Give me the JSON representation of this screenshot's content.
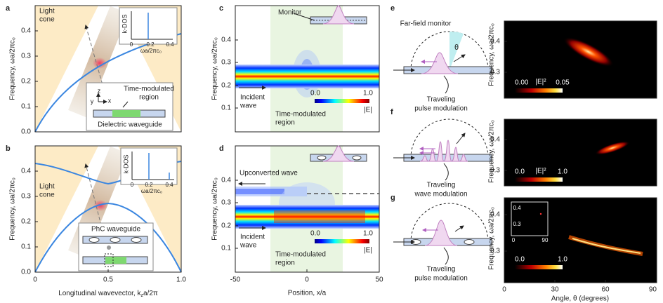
{
  "a": {
    "label": "a",
    "light_cone": [
      "Light",
      "cone"
    ],
    "kdos": "k-DOS",
    "inset_ticks": [
      "0",
      "0.2",
      "0.4"
    ],
    "inset_xlabel": "ωa/2πc₀",
    "ylabel": "Frequency, ωa/2πc₀",
    "yticks": [
      "0.0",
      "0.1",
      "0.2",
      "0.3",
      "0.4"
    ],
    "axes": [
      "y",
      "z",
      "x"
    ],
    "region": [
      "Time-modulated",
      "region"
    ],
    "waveguide": "Dielectric waveguide"
  },
  "b": {
    "label": "b",
    "light_cone": [
      "Light",
      "cone"
    ],
    "kdos": "k-DOS",
    "inset_ticks": [
      "0",
      "0.2",
      "0.4"
    ],
    "inset_xlabel": "ωa/2πc₀",
    "ylabel": "Frequency, ωa/2πc₀",
    "yticks": [
      "0.0",
      "0.1",
      "0.2",
      "0.3",
      "0.4"
    ],
    "waveguide": "PhC waveguide",
    "xticks": [
      "0",
      "0.5",
      "1.0"
    ],
    "xlabel": [
      "Longitudinal wavevector, k",
      "z",
      "a/2π"
    ]
  },
  "c": {
    "label": "c",
    "monitor": "Monitor",
    "incident": [
      "Incident",
      "wave"
    ],
    "region": [
      "Time-modulated",
      "region"
    ],
    "colorbar": [
      "0.0",
      "1.0"
    ],
    "colorbar_label": "|E|",
    "ylabel": "Frequency, ωa/2πc₀",
    "yticks": [
      "0.1",
      "0.2",
      "0.3",
      "0.4"
    ]
  },
  "d": {
    "label": "d",
    "upconverted": "Upconverted wave",
    "incident": [
      "Incident",
      "wave"
    ],
    "region": [
      "Time-modulated",
      "region"
    ],
    "colorbar": [
      "0.0",
      "1.0"
    ],
    "colorbar_label": "|E|",
    "ylabel": "Frequency, ωa/2πc₀",
    "yticks": [
      "0.1",
      "0.2",
      "0.3",
      "0.4"
    ],
    "xticks": [
      "-50",
      "0",
      "50"
    ],
    "xlabel": "Position, x/a"
  },
  "e": {
    "label": "e",
    "monitor": "Far-field monitor",
    "theta": "θ",
    "caption": [
      "Traveling",
      "pulse modulation"
    ],
    "ylabel": "Frequency, ωa/2πc₀",
    "yticks": [
      "0.3",
      "0.4"
    ],
    "colorbar": [
      "0.00",
      "0.05"
    ],
    "colorbar_label": "|E|²"
  },
  "f": {
    "label": "f",
    "caption": [
      "Traveling",
      "wave modulation"
    ],
    "ylabel": "Frequency, ωa/2πc₀",
    "yticks": [
      "0.3",
      "0.4"
    ],
    "colorbar": [
      "0.0",
      "1.0"
    ],
    "colorbar_label": "|E|²"
  },
  "g": {
    "label": "g",
    "caption": [
      "Traveling",
      "pulse modulation"
    ],
    "ylabel": "Frequency, ωa/2πc₀",
    "yticks": [
      "0.3",
      "0.4"
    ],
    "colorbar": [
      "0.0",
      "1.0"
    ],
    "inset_yticks": [
      "0.4",
      "0.3"
    ],
    "inset_xticks": [
      "0",
      "90"
    ],
    "xticks": [
      "0",
      "30",
      "60",
      "90"
    ],
    "xlabel": "Angle, θ (degrees)"
  }
}
